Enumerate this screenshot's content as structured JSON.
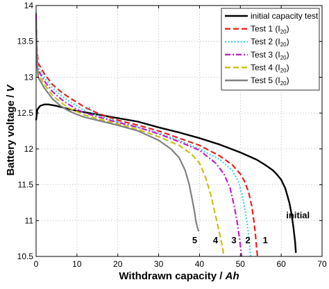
{
  "chart_data": {
    "type": "line",
    "xlabel": "Withdrawn capacity / Ah",
    "xlabel_parts": {
      "text": "Withdrawn capacity / ",
      "unit": "Ah"
    },
    "ylabel": "Battery voltage / V",
    "ylabel_parts": {
      "text": "Battery voltage / ",
      "unit": "V"
    },
    "xlim": [
      0,
      70
    ],
    "ylim": [
      10.5,
      14
    ],
    "xticks": [
      0,
      10,
      20,
      30,
      40,
      50,
      60,
      70
    ],
    "xtick_labels": [
      "0",
      "10",
      "20",
      "30",
      "40",
      "50",
      "60",
      "70"
    ],
    "yticks": [
      10.5,
      11,
      11.5,
      12,
      12.5,
      13,
      13.5,
      14
    ],
    "ytick_labels": [
      "10.5",
      "11",
      "11.5",
      "12",
      "12.5",
      "13",
      "13.5",
      "14"
    ],
    "grid": true,
    "legend_position": "top-right",
    "series": [
      {
        "name": "initial capacity test",
        "legend_label": {
          "text": "initial capacity test",
          "sub": "",
          "after": ""
        },
        "color": "#000000",
        "dash": "solid",
        "x": [
          0,
          0.3,
          1,
          2,
          3,
          5,
          7,
          10,
          15,
          20,
          25,
          30,
          35,
          40,
          45,
          50,
          54,
          56,
          58,
          59,
          60,
          61,
          62,
          62.5,
          63,
          63.4,
          63.6
        ],
        "y": [
          12.4,
          12.55,
          12.6,
          12.62,
          12.62,
          12.6,
          12.57,
          12.53,
          12.48,
          12.43,
          12.38,
          12.3,
          12.23,
          12.15,
          12.06,
          11.95,
          11.85,
          11.78,
          11.7,
          11.64,
          11.57,
          11.45,
          11.25,
          11.1,
          10.9,
          10.7,
          10.55
        ]
      },
      {
        "name": "Test 1 (I20)",
        "legend_label": {
          "text": "Test 1 (I",
          "sub": "20",
          "after": ")"
        },
        "color": "#e8201a",
        "dash": "dashed",
        "x": [
          0,
          0.2,
          0.5,
          1,
          2,
          4,
          6,
          8,
          10,
          12,
          15,
          20,
          25,
          30,
          35,
          40,
          45,
          48,
          50,
          51,
          52,
          52.8,
          53.3,
          53.7,
          54,
          54.2
        ],
        "y": [
          13.9,
          13.4,
          13.2,
          13.15,
          13.05,
          12.9,
          12.8,
          12.72,
          12.65,
          12.58,
          12.5,
          12.4,
          12.33,
          12.25,
          12.15,
          12.05,
          11.9,
          11.78,
          11.65,
          11.55,
          11.4,
          11.2,
          11.0,
          10.8,
          10.6,
          10.5
        ]
      },
      {
        "name": "Test 2 (I20)",
        "legend_label": {
          "text": "Test 2 (I",
          "sub": "20",
          "after": ")"
        },
        "color": "#3ed0f0",
        "dash": "dotted",
        "x": [
          0,
          0.2,
          0.5,
          1,
          2,
          4,
          6,
          8,
          10,
          12,
          13,
          14,
          16,
          20,
          25,
          30,
          35,
          40,
          45,
          48,
          49.5,
          50.5,
          51.3,
          51.8,
          52.2,
          52.5
        ],
        "y": [
          13.9,
          13.35,
          13.15,
          13.1,
          13.0,
          12.85,
          12.75,
          12.67,
          12.6,
          12.53,
          12.58,
          12.49,
          12.45,
          12.38,
          12.3,
          12.22,
          12.12,
          12.0,
          11.85,
          11.7,
          11.55,
          11.35,
          11.1,
          10.9,
          10.7,
          10.5
        ]
      },
      {
        "name": "Test 3 (I20)",
        "legend_label": {
          "text": "Test 3 (I",
          "sub": "20",
          "after": ")"
        },
        "color": "#c020c0",
        "dash": "dashdot",
        "x": [
          0,
          0.2,
          0.5,
          1,
          2,
          4,
          6,
          8,
          10,
          12,
          15,
          20,
          25,
          30,
          35,
          40,
          44,
          46,
          47.5,
          48.5,
          49.3,
          49.8,
          50.1,
          50.3
        ],
        "y": [
          13.85,
          13.3,
          13.1,
          13.05,
          12.95,
          12.8,
          12.7,
          12.62,
          12.55,
          12.5,
          12.45,
          12.37,
          12.3,
          12.21,
          12.1,
          11.98,
          11.8,
          11.65,
          11.45,
          11.2,
          10.95,
          10.75,
          10.6,
          10.5
        ]
      },
      {
        "name": "Test 4 (I20)",
        "legend_label": {
          "text": "Test 4 (I",
          "sub": "20",
          "after": ")"
        },
        "color": "#c8c010",
        "dash": "dashed",
        "x": [
          0,
          0.2,
          0.5,
          1,
          2,
          4,
          6,
          8,
          10,
          12,
          15,
          20,
          25,
          30,
          35,
          38,
          40,
          41.5,
          42.8,
          43.8,
          44.6,
          45.2,
          45.7,
          46
        ],
        "y": [
          13.8,
          13.25,
          13.05,
          13.0,
          12.9,
          12.75,
          12.65,
          12.57,
          12.52,
          12.47,
          12.42,
          12.35,
          12.27,
          12.17,
          12.05,
          11.93,
          11.8,
          11.6,
          11.35,
          11.1,
          10.9,
          10.75,
          10.6,
          10.5
        ]
      },
      {
        "name": "Test 5 (I20)",
        "legend_label": {
          "text": "Test 5 (I",
          "sub": "20",
          "after": ")"
        },
        "color": "#808080",
        "dash": "solid",
        "x": [
          0,
          0.2,
          0.5,
          1,
          2,
          4,
          6,
          8,
          10,
          12,
          15,
          20,
          25,
          30,
          33,
          35,
          36.5,
          37.5,
          38.2,
          38.7,
          39.1,
          39.5,
          39.8
        ],
        "y": [
          13.8,
          13.2,
          13.0,
          12.95,
          12.85,
          12.7,
          12.6,
          12.53,
          12.48,
          12.44,
          12.4,
          12.33,
          12.25,
          12.12,
          12.0,
          11.88,
          11.7,
          11.5,
          11.3,
          11.15,
          11.0,
          10.9,
          10.85
        ]
      }
    ],
    "annotations": [
      {
        "text": "initial",
        "x": 61.2,
        "y": 11.08
      },
      {
        "text": "1",
        "x": 55.5,
        "y": 10.73
      },
      {
        "text": "2",
        "x": 51.2,
        "y": 10.73
      },
      {
        "text": "3",
        "x": 47.8,
        "y": 10.73
      },
      {
        "text": "4",
        "x": 43.3,
        "y": 10.73
      },
      {
        "text": "5",
        "x": 38.2,
        "y": 10.73
      }
    ]
  }
}
